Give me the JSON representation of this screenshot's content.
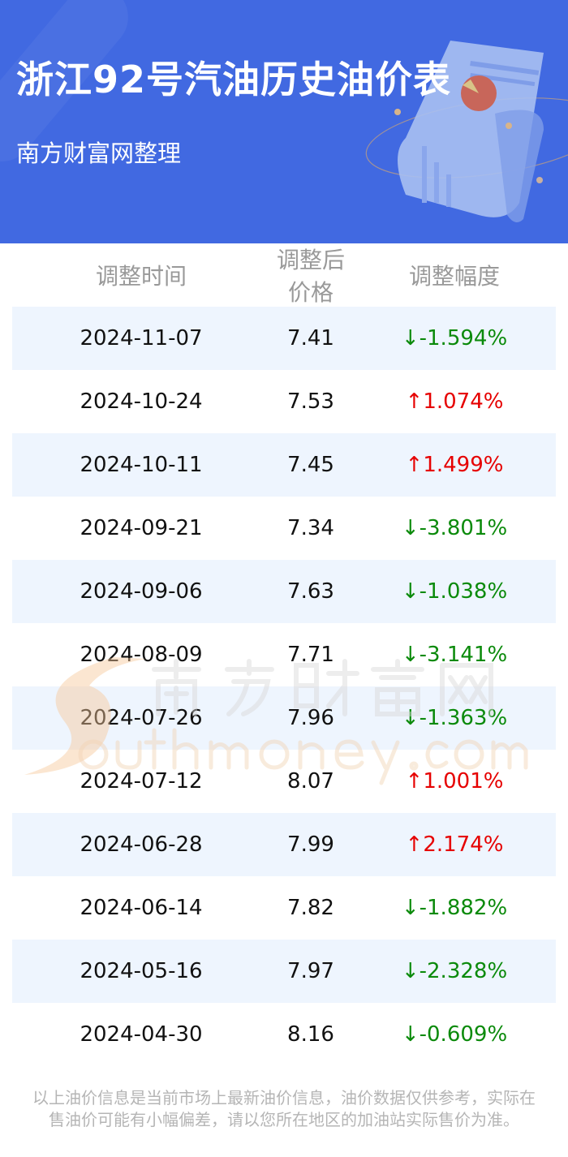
{
  "header": {
    "title": "浙江92号汽油历史油价表",
    "subtitle": "南方财富网整理",
    "background_color": "#4169e1"
  },
  "table": {
    "columns": [
      "调整时间",
      "调整后价格",
      "调整幅度"
    ],
    "rows": [
      {
        "date": "2024-11-07",
        "price": "7.41",
        "change": "↓-1.594%",
        "direction": "down"
      },
      {
        "date": "2024-10-24",
        "price": "7.53",
        "change": "↑1.074%",
        "direction": "up"
      },
      {
        "date": "2024-10-11",
        "price": "7.45",
        "change": "↑1.499%",
        "direction": "up"
      },
      {
        "date": "2024-09-21",
        "price": "7.34",
        "change": "↓-3.801%",
        "direction": "down"
      },
      {
        "date": "2024-09-06",
        "price": "7.63",
        "change": "↓-1.038%",
        "direction": "down"
      },
      {
        "date": "2024-08-09",
        "price": "7.71",
        "change": "↓-3.141%",
        "direction": "down"
      },
      {
        "date": "2024-07-26",
        "price": "7.96",
        "change": "↓-1.363%",
        "direction": "down"
      },
      {
        "date": "2024-07-12",
        "price": "8.07",
        "change": "↑1.001%",
        "direction": "up"
      },
      {
        "date": "2024-06-28",
        "price": "7.99",
        "change": "↑2.174%",
        "direction": "up"
      },
      {
        "date": "2024-06-14",
        "price": "7.82",
        "change": "↓-1.882%",
        "direction": "down"
      },
      {
        "date": "2024-05-16",
        "price": "7.97",
        "change": "↓-2.328%",
        "direction": "down"
      },
      {
        "date": "2024-04-30",
        "price": "8.16",
        "change": "↓-0.609%",
        "direction": "down"
      }
    ],
    "colors": {
      "up": "#e60000",
      "down": "#0b8a0b",
      "alt_row": "#eef5fe"
    }
  },
  "watermark": {
    "cn": "南方财富网",
    "en": "Southmoney.com"
  },
  "footer": {
    "line1": "以上油价信息是当前市场上最新油价信息，油价数据仅供参考，实际在",
    "line2": "售油价可能有小幅偏差，请以您所在地区的加油站实际售价为准。"
  }
}
